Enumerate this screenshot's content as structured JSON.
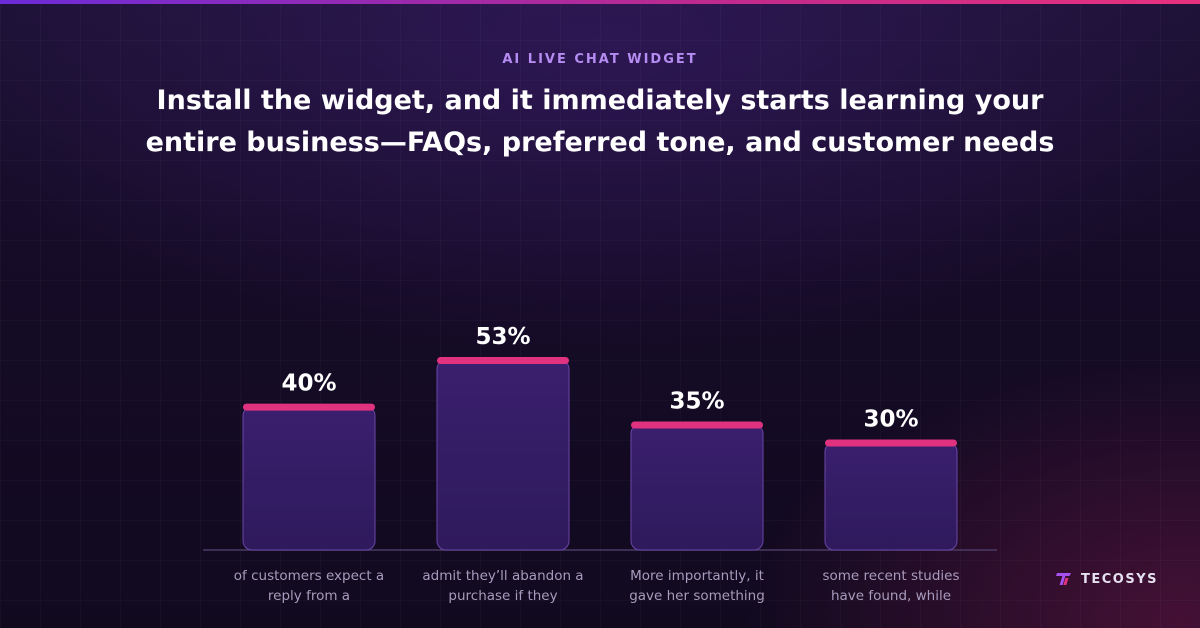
{
  "eyebrow": "AI LIVE CHAT WIDGET",
  "headline": {
    "line1": "Install the widget, and it immediately starts learning your",
    "line2": "entire business—FAQs, preferred tone, and customer needs"
  },
  "chart_data": {
    "type": "bar",
    "title": "",
    "xlabel": "",
    "ylabel": "",
    "ylim": [
      0,
      53
    ],
    "grid": false,
    "categories": [
      [
        "of customers expect a",
        "reply from a"
      ],
      [
        "admit they’ll abandon a",
        "purchase if they"
      ],
      [
        "More importantly, it",
        "gave her something"
      ],
      [
        "some recent studies",
        "have found, while"
      ]
    ],
    "values": [
      40,
      53,
      35,
      30
    ],
    "value_labels": [
      "40%",
      "53%",
      "35%",
      "30%"
    ],
    "colors": {
      "bar_fill": "#2f1a5c",
      "bar_stroke": "#6a45a8",
      "bar_cap": "#e0327f",
      "value_label": "#ffffff",
      "category_label": "#a89bbd",
      "baseline": "#4a3a66"
    }
  },
  "brand": {
    "icon": "tecosys-logo-icon",
    "name": "TECOSYS"
  }
}
